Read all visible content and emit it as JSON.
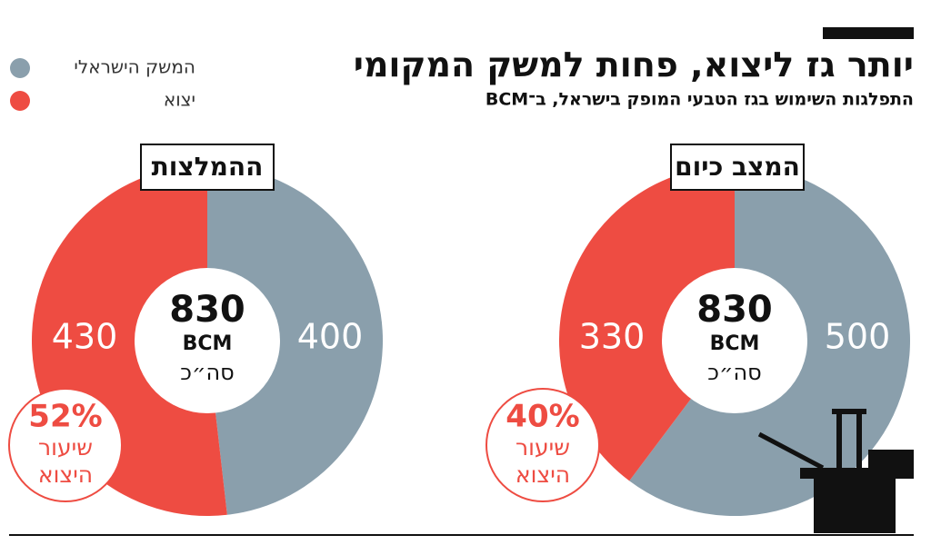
{
  "header": {
    "title": "יותר גז ליצוא, פחות למשק המקומי",
    "subtitle": "התפלגות השימוש בגז הטבעי המופק בישראל, ב־BCM"
  },
  "chart_data": [
    {
      "type": "pie",
      "title": "המצב כיום",
      "categories": [
        "המשק הישראלי",
        "יצוא"
      ],
      "colors": [
        "#8a9fac",
        "#ee4c42"
      ],
      "values": [
        500,
        330
      ],
      "total": 830,
      "total_unit": "BCM",
      "total_label": "סה״כ",
      "share_label": "40%",
      "share_caption": "שיעור היצוא"
    },
    {
      "type": "pie",
      "title": "ההמלצות",
      "categories": [
        "המשק הישראלי",
        "יצוא"
      ],
      "colors": [
        "#8a9fac",
        "#ee4c42"
      ],
      "values": [
        400,
        430
      ],
      "total": 830,
      "total_unit": "BCM",
      "total_label": "סה״כ",
      "share_label": "52%",
      "share_caption": "שיעור היצוא"
    }
  ]
}
